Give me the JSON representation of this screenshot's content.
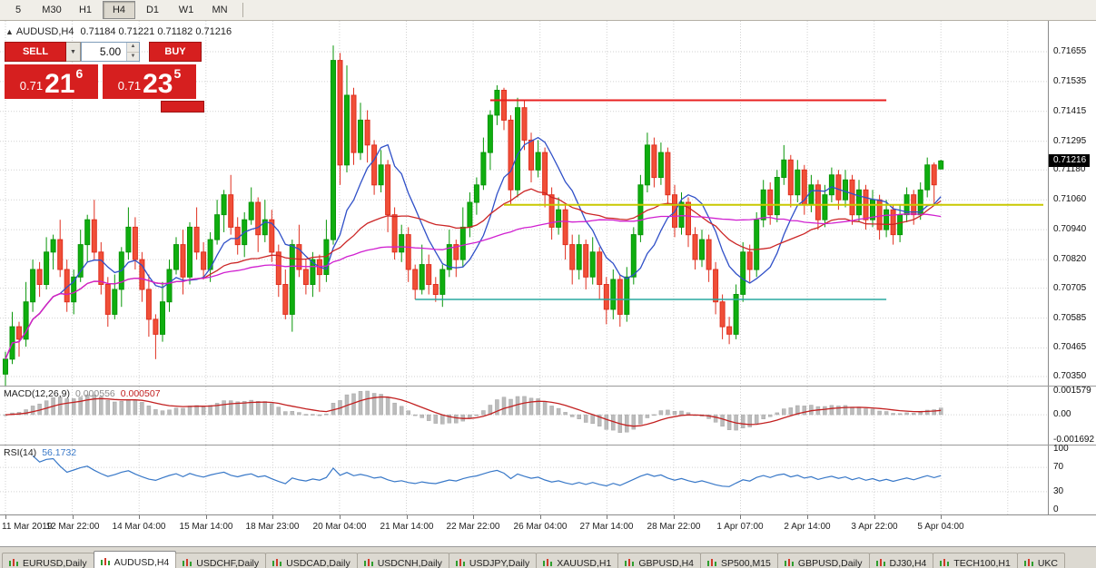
{
  "toolbar": {
    "timeframes": [
      "5",
      "M30",
      "H1",
      "H4",
      "D1",
      "W1",
      "MN"
    ],
    "active_timeframe": "H4"
  },
  "chart": {
    "symbol_label": "AUDUSD,H4",
    "ohlc_text": "0.71184  0.71221  0.71182  0.71216",
    "open": "0.71184",
    "high": "0.71221",
    "low": "0.71182",
    "close": "0.71216"
  },
  "trade_widget": {
    "sell_label": "SELL",
    "buy_label": "BUY",
    "volume": "5.00",
    "sell_price": {
      "prefix": "0.71",
      "big": "21",
      "sup": "6"
    },
    "buy_price": {
      "prefix": "0.71",
      "big": "23",
      "sup": "5"
    }
  },
  "price_axis": {
    "labels": [
      "0.71655",
      "0.71535",
      "0.71415",
      "0.71295",
      "0.71180",
      "0.71060",
      "0.70940",
      "0.70820",
      "0.70705",
      "0.70585",
      "0.70465",
      "0.70350"
    ],
    "current": "0.71216"
  },
  "macd": {
    "label": "MACD(12,26,9)",
    "value_main": "0.000556",
    "value_signal": "0.000507",
    "axis": [
      "0.001579",
      "0.00",
      "-0.001692"
    ]
  },
  "rsi": {
    "label": "RSI(14)",
    "value": "56.1732",
    "axis": [
      "100",
      "70",
      "30",
      "0"
    ]
  },
  "time_axis": [
    "11 Mar 2019",
    "12 Mar 22:00",
    "14 Mar 04:00",
    "15 Mar 14:00",
    "18 Mar 23:00",
    "20 Mar 04:00",
    "21 Mar 14:00",
    "22 Mar 22:00",
    "26 Mar 04:00",
    "27 Mar 14:00",
    "28 Mar 22:00",
    "1 Apr 07:00",
    "2 Apr 14:00",
    "3 Apr 22:00",
    "5 Apr 04:00"
  ],
  "tabs": [
    "EURUSD,Daily",
    "AUDUSD,H4",
    "USDCHF,Daily",
    "USDCAD,Daily",
    "USDCNH,Daily",
    "USDJPY,Daily",
    "XAUUSD,H1",
    "GBPUSD,H4",
    "SP500,M15",
    "GBPUSD,Daily",
    "DJ30,H4",
    "TECH100,H1",
    "UKC"
  ],
  "active_tab": "AUDUSD,H4",
  "colors": {
    "up_candle": "#0fae0f",
    "up_border": "#089608",
    "down_candle": "#f04f38",
    "down_border": "#e03020",
    "ma_fast": "#3050c8",
    "ma_mid": "#cc2626",
    "ma_slow": "#d020d0",
    "macd_hist": "#bcbcbc",
    "macd_signal": "#c22020",
    "rsi_line": "#3878c8",
    "button_red": "#d61f1f",
    "price_tag_bg": "#000000"
  },
  "chart_data": {
    "type": "candlestick",
    "symbol": "AUDUSD",
    "timeframe": "H4",
    "ylim": [
      0.7035,
      0.71655
    ],
    "ohlc": [
      [
        0.7036,
        0.7045,
        0.7031,
        0.7042
      ],
      [
        0.7042,
        0.7061,
        0.704,
        0.7055
      ],
      [
        0.7055,
        0.7057,
        0.7043,
        0.705
      ],
      [
        0.705,
        0.7073,
        0.7047,
        0.7065
      ],
      [
        0.7065,
        0.7082,
        0.7061,
        0.7078
      ],
      [
        0.7078,
        0.7081,
        0.7067,
        0.7072
      ],
      [
        0.7072,
        0.7091,
        0.707,
        0.7085
      ],
      [
        0.7085,
        0.7092,
        0.7078,
        0.709
      ],
      [
        0.709,
        0.7098,
        0.7075,
        0.7078
      ],
      [
        0.7078,
        0.7082,
        0.7061,
        0.7065
      ],
      [
        0.7065,
        0.7078,
        0.706,
        0.7075
      ],
      [
        0.7075,
        0.7094,
        0.7073,
        0.7088
      ],
      [
        0.7088,
        0.71,
        0.7081,
        0.7098
      ],
      [
        0.7098,
        0.7106,
        0.7082,
        0.7085
      ],
      [
        0.7085,
        0.7089,
        0.7068,
        0.7072
      ],
      [
        0.7072,
        0.7075,
        0.7055,
        0.706
      ],
      [
        0.706,
        0.7076,
        0.7058,
        0.707
      ],
      [
        0.707,
        0.7087,
        0.7063,
        0.7085
      ],
      [
        0.7085,
        0.7103,
        0.7082,
        0.7095
      ],
      [
        0.7095,
        0.7099,
        0.7078,
        0.7082
      ],
      [
        0.7082,
        0.7085,
        0.7065,
        0.707
      ],
      [
        0.707,
        0.7076,
        0.7051,
        0.7058
      ],
      [
        0.7058,
        0.706,
        0.7042,
        0.7052
      ],
      [
        0.7052,
        0.7073,
        0.7049,
        0.7065
      ],
      [
        0.7065,
        0.7082,
        0.7061,
        0.7078
      ],
      [
        0.7078,
        0.7091,
        0.7076,
        0.7088
      ],
      [
        0.7088,
        0.7094,
        0.7068,
        0.7075
      ],
      [
        0.7075,
        0.7097,
        0.7072,
        0.7095
      ],
      [
        0.7095,
        0.7103,
        0.7082,
        0.7085
      ],
      [
        0.7085,
        0.7089,
        0.7074,
        0.7078
      ],
      [
        0.7078,
        0.7093,
        0.7073,
        0.709
      ],
      [
        0.709,
        0.7106,
        0.7088,
        0.71
      ],
      [
        0.71,
        0.711,
        0.7093,
        0.7108
      ],
      [
        0.7108,
        0.7116,
        0.7092,
        0.7095
      ],
      [
        0.7095,
        0.7099,
        0.7084,
        0.7088
      ],
      [
        0.7088,
        0.7101,
        0.7083,
        0.7098
      ],
      [
        0.7098,
        0.7111,
        0.7096,
        0.7105
      ],
      [
        0.7105,
        0.7107,
        0.7085,
        0.7092
      ],
      [
        0.7092,
        0.7106,
        0.7089,
        0.7098
      ],
      [
        0.7098,
        0.7102,
        0.7081,
        0.7085
      ],
      [
        0.7085,
        0.7088,
        0.7067,
        0.7072
      ],
      [
        0.7072,
        0.7078,
        0.7058,
        0.706
      ],
      [
        0.706,
        0.709,
        0.7053,
        0.7088
      ],
      [
        0.7088,
        0.7096,
        0.7075,
        0.7078
      ],
      [
        0.7078,
        0.7082,
        0.7068,
        0.7072
      ],
      [
        0.7072,
        0.7085,
        0.7067,
        0.7082
      ],
      [
        0.7082,
        0.7084,
        0.7069,
        0.7076
      ],
      [
        0.7076,
        0.7098,
        0.7073,
        0.709
      ],
      [
        0.709,
        0.7168,
        0.7088,
        0.7162
      ],
      [
        0.7162,
        0.7165,
        0.7112,
        0.712
      ],
      [
        0.712,
        0.716,
        0.7117,
        0.7148
      ],
      [
        0.7148,
        0.7151,
        0.712,
        0.7125
      ],
      [
        0.7125,
        0.7145,
        0.7122,
        0.7138
      ],
      [
        0.7138,
        0.7142,
        0.7121,
        0.7128
      ],
      [
        0.7128,
        0.713,
        0.7108,
        0.7112
      ],
      [
        0.7112,
        0.7126,
        0.7109,
        0.712
      ],
      [
        0.712,
        0.7122,
        0.7093,
        0.71
      ],
      [
        0.71,
        0.7103,
        0.7082,
        0.7085
      ],
      [
        0.7085,
        0.7096,
        0.7081,
        0.7092
      ],
      [
        0.7092,
        0.7095,
        0.7073,
        0.7078
      ],
      [
        0.7078,
        0.708,
        0.7066,
        0.707
      ],
      [
        0.707,
        0.7088,
        0.7068,
        0.708
      ],
      [
        0.708,
        0.7084,
        0.7068,
        0.7072
      ],
      [
        0.7072,
        0.7075,
        0.7065,
        0.7068
      ],
      [
        0.7068,
        0.708,
        0.7063,
        0.7078
      ],
      [
        0.7078,
        0.7094,
        0.7075,
        0.7088
      ],
      [
        0.7088,
        0.709,
        0.7075,
        0.7082
      ],
      [
        0.7082,
        0.7103,
        0.7079,
        0.7095
      ],
      [
        0.7095,
        0.7109,
        0.7091,
        0.7105
      ],
      [
        0.7105,
        0.7115,
        0.71,
        0.7112
      ],
      [
        0.7112,
        0.7131,
        0.711,
        0.7125
      ],
      [
        0.7125,
        0.7142,
        0.7118,
        0.714
      ],
      [
        0.714,
        0.7152,
        0.7136,
        0.715
      ],
      [
        0.715,
        0.7151,
        0.7134,
        0.7138
      ],
      [
        0.7138,
        0.714,
        0.7104,
        0.711
      ],
      [
        0.711,
        0.7147,
        0.7107,
        0.7143
      ],
      [
        0.7143,
        0.7146,
        0.7126,
        0.713
      ],
      [
        0.713,
        0.7133,
        0.7113,
        0.7118
      ],
      [
        0.7118,
        0.713,
        0.7115,
        0.7125
      ],
      [
        0.7125,
        0.7127,
        0.7103,
        0.7108
      ],
      [
        0.7108,
        0.7111,
        0.709,
        0.7095
      ],
      [
        0.7095,
        0.7107,
        0.7092,
        0.7102
      ],
      [
        0.7102,
        0.7104,
        0.7082,
        0.7088
      ],
      [
        0.7088,
        0.7092,
        0.7072,
        0.7078
      ],
      [
        0.7078,
        0.7092,
        0.7074,
        0.7088
      ],
      [
        0.7088,
        0.709,
        0.707,
        0.7075
      ],
      [
        0.7075,
        0.7091,
        0.7072,
        0.7085
      ],
      [
        0.7085,
        0.7087,
        0.7066,
        0.7072
      ],
      [
        0.7072,
        0.7075,
        0.7056,
        0.7062
      ],
      [
        0.7062,
        0.7078,
        0.7058,
        0.7074
      ],
      [
        0.7074,
        0.7076,
        0.7055,
        0.706
      ],
      [
        0.706,
        0.7079,
        0.7057,
        0.7075
      ],
      [
        0.7075,
        0.7095,
        0.7072,
        0.7092
      ],
      [
        0.7092,
        0.7116,
        0.7089,
        0.7112
      ],
      [
        0.7112,
        0.7133,
        0.7109,
        0.7128
      ],
      [
        0.7128,
        0.7131,
        0.7111,
        0.7115
      ],
      [
        0.7115,
        0.7129,
        0.7112,
        0.7125
      ],
      [
        0.7125,
        0.7127,
        0.7104,
        0.7108
      ],
      [
        0.7108,
        0.7112,
        0.7091,
        0.7095
      ],
      [
        0.7095,
        0.7109,
        0.7092,
        0.7105
      ],
      [
        0.7105,
        0.7107,
        0.7087,
        0.7092
      ],
      [
        0.7092,
        0.7095,
        0.7078,
        0.7082
      ],
      [
        0.7082,
        0.7094,
        0.7079,
        0.709
      ],
      [
        0.709,
        0.7092,
        0.7073,
        0.7078
      ],
      [
        0.7078,
        0.7081,
        0.706,
        0.7065
      ],
      [
        0.7065,
        0.7068,
        0.705,
        0.7055
      ],
      [
        0.7055,
        0.7059,
        0.7048,
        0.7052
      ],
      [
        0.7052,
        0.7072,
        0.705,
        0.7068
      ],
      [
        0.7068,
        0.7089,
        0.7065,
        0.7085
      ],
      [
        0.7085,
        0.7088,
        0.7073,
        0.7078
      ],
      [
        0.7078,
        0.7101,
        0.7075,
        0.7098
      ],
      [
        0.7098,
        0.7114,
        0.7095,
        0.711
      ],
      [
        0.711,
        0.7113,
        0.7096,
        0.71
      ],
      [
        0.71,
        0.7118,
        0.7097,
        0.7115
      ],
      [
        0.7115,
        0.7128,
        0.7112,
        0.7122
      ],
      [
        0.7122,
        0.7124,
        0.7103,
        0.7108
      ],
      [
        0.7108,
        0.7122,
        0.7105,
        0.7118
      ],
      [
        0.7118,
        0.712,
        0.71,
        0.7104
      ],
      [
        0.7104,
        0.7116,
        0.7101,
        0.7112
      ],
      [
        0.7112,
        0.7114,
        0.7094,
        0.7098
      ],
      [
        0.7098,
        0.7112,
        0.7095,
        0.7108
      ],
      [
        0.7108,
        0.7119,
        0.7105,
        0.7116
      ],
      [
        0.7116,
        0.7118,
        0.7102,
        0.7106
      ],
      [
        0.7106,
        0.7118,
        0.7103,
        0.7114
      ],
      [
        0.7114,
        0.7116,
        0.7096,
        0.71
      ],
      [
        0.71,
        0.7114,
        0.7097,
        0.711
      ],
      [
        0.711,
        0.7112,
        0.7094,
        0.7098
      ],
      [
        0.7098,
        0.711,
        0.7095,
        0.7106
      ],
      [
        0.7106,
        0.7108,
        0.709,
        0.7094
      ],
      [
        0.7094,
        0.7106,
        0.7091,
        0.7102
      ],
      [
        0.7102,
        0.7104,
        0.7088,
        0.7092
      ],
      [
        0.7092,
        0.7104,
        0.7089,
        0.71
      ],
      [
        0.71,
        0.7111,
        0.7097,
        0.7108
      ],
      [
        0.7108,
        0.711,
        0.7096,
        0.71
      ],
      [
        0.71,
        0.7113,
        0.7098,
        0.711
      ],
      [
        0.711,
        0.7123,
        0.7107,
        0.712
      ],
      [
        0.712,
        0.7121,
        0.7104,
        0.7112
      ],
      [
        0.71184,
        0.71221,
        0.71182,
        0.71216
      ]
    ],
    "moving_averages": [
      {
        "name": "fast-blue",
        "period": 9,
        "color": "#3050c8"
      },
      {
        "name": "mid-red",
        "period": 30,
        "color": "#cc2626"
      },
      {
        "name": "slow-magenta",
        "period": 65,
        "color": "#d020d0"
      }
    ],
    "hlines": [
      {
        "name": "resistance-red",
        "price": 0.7146,
        "color": "#e82020",
        "width": 2,
        "from_index": 71,
        "to_index": 129
      },
      {
        "name": "pivot-yellow",
        "price": 0.7104,
        "color": "#c8c800",
        "width": 2,
        "from_index": 73,
        "to_index": 152
      },
      {
        "name": "support-teal",
        "price": 0.7066,
        "color": "#2aa8a0",
        "width": 1.5,
        "from_index": 60,
        "to_index": 129
      }
    ],
    "indicators": [
      {
        "name": "MACD",
        "params": "12,26,9",
        "values": [
          0.000556,
          0.000507
        ],
        "axis_range": [
          0.001579,
          -0.001692
        ]
      },
      {
        "name": "RSI",
        "params": "14",
        "value": 56.1732,
        "levels": [
          70,
          30
        ]
      }
    ]
  }
}
